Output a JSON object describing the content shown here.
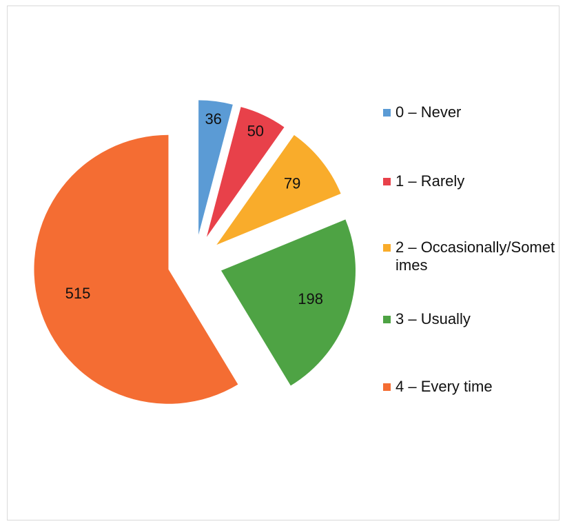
{
  "chart_data": {
    "type": "pie",
    "exploded": true,
    "legend_position": "right",
    "slices": [
      {
        "label": "0 – Never",
        "value": 36,
        "color": "#5b9bd5"
      },
      {
        "label": "1 – Rarely",
        "value": 50,
        "color": "#e8414a"
      },
      {
        "label": "2 – Occasionally/Sometimes",
        "value": 79,
        "color": "#f9ac2b"
      },
      {
        "label": "3 – Usually",
        "value": 198,
        "color": "#4ea344"
      },
      {
        "label": "4 – Every time",
        "value": 515,
        "color": "#f46d33"
      }
    ]
  }
}
